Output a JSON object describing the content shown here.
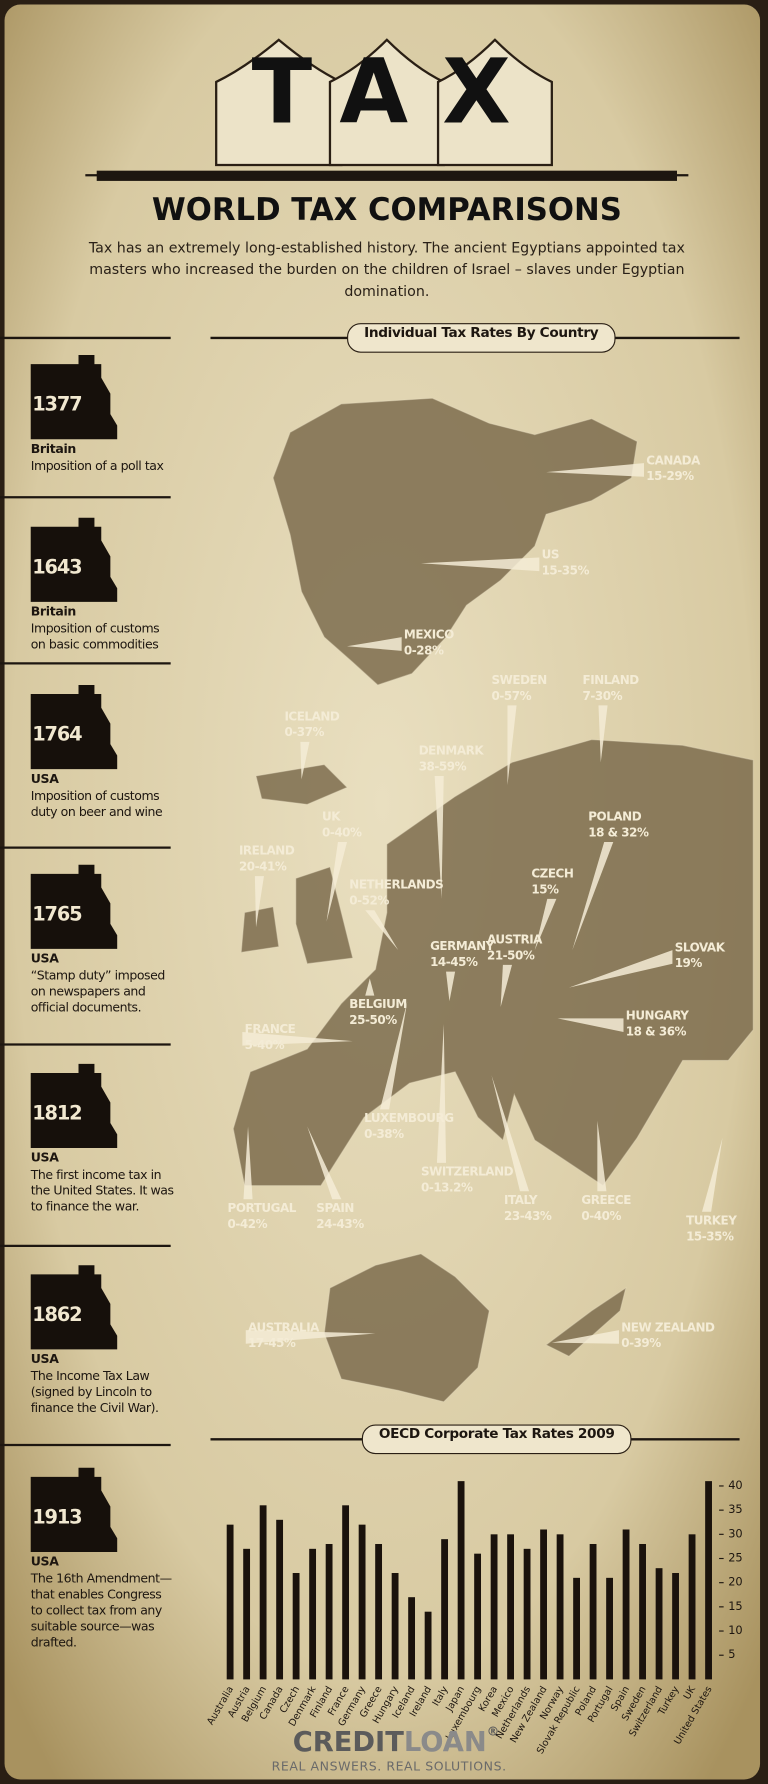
{
  "header": {
    "title": "TAX",
    "subtitle": "WORLD TAX COMPARISONS",
    "intro": "Tax has an extremely long-established history. The ancient Egyptians appointed tax masters who increased the burden on the children of Israel – slaves under Egyptian domination."
  },
  "timeline": [
    {
      "year": "1377",
      "country": "Britain",
      "text": "Imposition of a poll tax"
    },
    {
      "year": "1643",
      "country": "Britain",
      "text": "Imposition of customs on basic commodities"
    },
    {
      "year": "1764",
      "country": "USA",
      "text": "Imposition of customs duty on beer and wine"
    },
    {
      "year": "1765",
      "country": "USA",
      "text": "“Stamp duty” imposed on newspapers and official documents."
    },
    {
      "year": "1812",
      "country": "USA",
      "text": "The first income tax in the United States. It was to finance the war."
    },
    {
      "year": "1862",
      "country": "USA",
      "text": "The Income Tax Law (signed by Lincoln to finance the Civil War)."
    },
    {
      "year": "1913",
      "country": "USA",
      "text": "The 16th Amendment—that enables Congress to collect tax from any suitable source—was drafted."
    }
  ],
  "map": {
    "title": "Individual Tax Rates By Country",
    "labels": [
      {
        "name": "CANADA",
        "rate": "15-29%"
      },
      {
        "name": "US",
        "rate": "15-35%"
      },
      {
        "name": "MEXICO",
        "rate": "0-28%"
      },
      {
        "name": "SWEDEN",
        "rate": "0-57%"
      },
      {
        "name": "FINLAND",
        "rate": "7-30%"
      },
      {
        "name": "ICELAND",
        "rate": "0-37%"
      },
      {
        "name": "DENMARK",
        "rate": "38-59%"
      },
      {
        "name": "UK",
        "rate": "0-40%"
      },
      {
        "name": "POLAND",
        "rate": "18 & 32%"
      },
      {
        "name": "IRELAND",
        "rate": "20-41%"
      },
      {
        "name": "CZECH",
        "rate": "15%"
      },
      {
        "name": "NETHERLANDS",
        "rate": "0-52%"
      },
      {
        "name": "AUSTRIA",
        "rate": "21-50%"
      },
      {
        "name": "GERMANY",
        "rate": "14-45%"
      },
      {
        "name": "SLOVAK",
        "rate": "19%"
      },
      {
        "name": "BELGIUM",
        "rate": "25-50%"
      },
      {
        "name": "HUNGARY",
        "rate": "18 & 36%"
      },
      {
        "name": "FRANCE",
        "rate": "5-40%"
      },
      {
        "name": "LUXEMBOURG",
        "rate": "0-38%"
      },
      {
        "name": "SWITZERLAND",
        "rate": "0-13.2%"
      },
      {
        "name": "PORTUGAL",
        "rate": "0-42%"
      },
      {
        "name": "SPAIN",
        "rate": "24-43%"
      },
      {
        "name": "ITALY",
        "rate": "23-43%"
      },
      {
        "name": "GREECE",
        "rate": "0-40%"
      },
      {
        "name": "TURKEY",
        "rate": "15-35%"
      },
      {
        "name": "AUSTRALIA",
        "rate": "17-45%"
      },
      {
        "name": "NEW ZEALAND",
        "rate": "0-39%"
      }
    ]
  },
  "corporate_chart": {
    "type": "bar",
    "title": "OECD Corporate Tax Rates 2009",
    "categories": [
      "Australia",
      "Austria",
      "Belgium",
      "Canada",
      "Czech",
      "Denmark",
      "Finland",
      "France",
      "Germany",
      "Greece",
      "Hungary",
      "Iceland",
      "Ireland",
      "Italy",
      "Japan",
      "Luxembourg",
      "Korea",
      "Mexico",
      "Netherlands",
      "New Zealand",
      "Norway",
      "Slovak Republic",
      "Poland",
      "Portugal",
      "Spain",
      "Sweden",
      "Switzerland",
      "Turkey",
      "UK",
      "United States"
    ],
    "values": [
      32,
      27,
      36,
      33,
      22,
      27,
      28,
      36,
      32,
      28,
      22,
      17,
      14,
      29,
      41,
      26,
      30,
      30,
      27,
      31,
      30,
      21,
      28,
      21,
      31,
      28,
      23,
      22,
      30,
      41
    ],
    "color": "#1a120c",
    "ylim": [
      0,
      42
    ],
    "yticks": [
      5,
      10,
      15,
      20,
      25,
      30,
      35,
      40
    ]
  },
  "footer": {
    "brand_credit": "CREDIT",
    "brand_loan": "LOAN",
    "registered": "®",
    "tagline": "REAL ANSWERS. REAL SOLUTIONS."
  }
}
